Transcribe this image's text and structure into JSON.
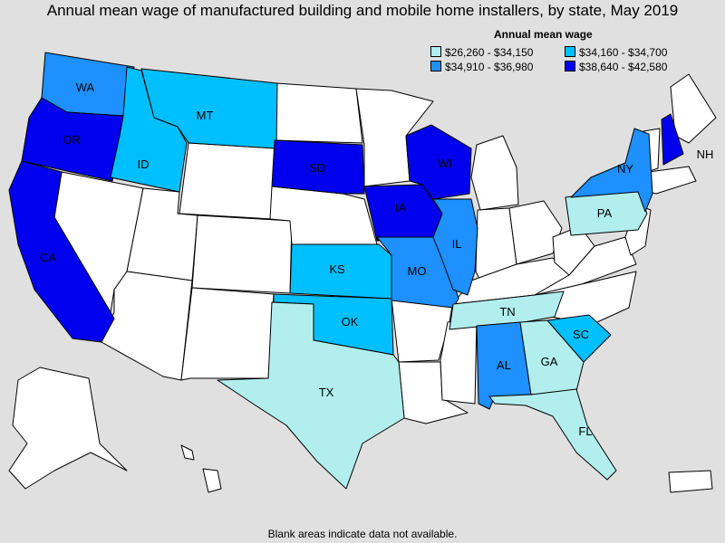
{
  "title": "Annual mean wage of manufactured building and mobile home installers, by state, May 2019",
  "legend": {
    "title": "Annual mean wage",
    "items": [
      {
        "label": "$26,260 - $34,150",
        "color": "#b2eeee"
      },
      {
        "label": "$34,160 - $34,700",
        "color": "#00bfff"
      },
      {
        "label": "$34,910 - $36,980",
        "color": "#1e90ff"
      },
      {
        "label": "$38,640 - $42,580",
        "color": "#0000ee"
      }
    ]
  },
  "footer": "Blank areas indicate data not available.",
  "no_data_color": "#ffffff",
  "states": [
    {
      "abbr": "WA",
      "tier": 2
    },
    {
      "abbr": "OR",
      "tier": 3
    },
    {
      "abbr": "CA",
      "tier": 3
    },
    {
      "abbr": "ID",
      "tier": 1
    },
    {
      "abbr": "MT",
      "tier": 1
    },
    {
      "abbr": "SD",
      "tier": 3
    },
    {
      "abbr": "IA",
      "tier": 3
    },
    {
      "abbr": "WI",
      "tier": 3
    },
    {
      "abbr": "KS",
      "tier": 1
    },
    {
      "abbr": "OK",
      "tier": 1
    },
    {
      "abbr": "MO",
      "tier": 2
    },
    {
      "abbr": "IL",
      "tier": 2
    },
    {
      "abbr": "TX",
      "tier": 0
    },
    {
      "abbr": "TN",
      "tier": 0
    },
    {
      "abbr": "AL",
      "tier": 2
    },
    {
      "abbr": "GA",
      "tier": 0
    },
    {
      "abbr": "FL",
      "tier": 0
    },
    {
      "abbr": "SC",
      "tier": 1
    },
    {
      "abbr": "PA",
      "tier": 0
    },
    {
      "abbr": "NY",
      "tier": 2
    },
    {
      "abbr": "NH",
      "tier": 3
    }
  ]
}
